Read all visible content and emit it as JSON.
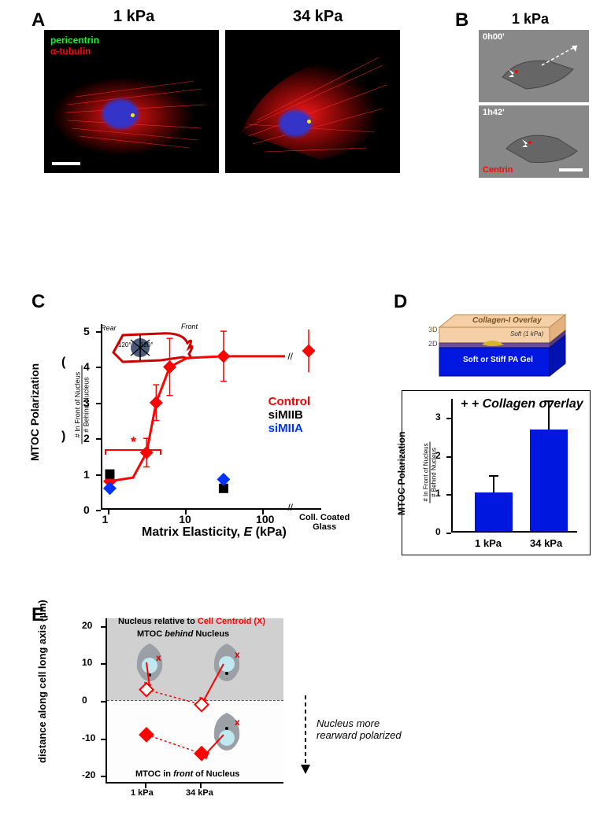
{
  "panelA": {
    "label": "A",
    "img1_title": "1 kPa",
    "img2_title": "34 kPa",
    "legend_pericentrin": "pericentrin",
    "legend_tubulin": "α-tubulin",
    "colors": {
      "pericentrin": "#00ff1a",
      "tubulin": "#ff0505",
      "nucleus": "#2e2ee6",
      "bg": "#000000",
      "dot": "#f8e71c"
    }
  },
  "panelB": {
    "label": "B",
    "title": "1 kPa",
    "time0": "0h00'",
    "time1": "1h42'",
    "centrin": "Centrin",
    "centrin_color": "#ff0505",
    "bg": "#777777"
  },
  "panelC": {
    "label": "C",
    "ylabel_top": "MTOC Polarization",
    "ylabel_frac_top": "# In Front of Nucleus",
    "ylabel_frac_bot": "# Behind Nucleus",
    "xlabel": "Matrix Elasticity, ",
    "xlabel_var": "E",
    "xlabel_unit": " (kPa)",
    "coll_glass1": "Coll. Coated",
    "coll_glass2": "Glass",
    "legend": {
      "control": "Control",
      "siMIIB": "siMIIB",
      "siMIIA": "siMIIA"
    },
    "legend_colors": {
      "control": "#ff0000",
      "siMIIB": "#000000",
      "siMIIA": "#0033ff"
    },
    "xticks": [
      "1",
      "10",
      "100"
    ],
    "yticks": [
      "0",
      "1",
      "2",
      "3",
      "4",
      "5"
    ],
    "control_curve": [
      {
        "x": 1,
        "y": 0.8
      },
      {
        "x": 2,
        "y": 0.9
      },
      {
        "x": 3,
        "y": 1.6
      },
      {
        "x": 4,
        "y": 3.0
      },
      {
        "x": 6,
        "y": 4.0
      },
      {
        "x": 10,
        "y": 4.25
      },
      {
        "x": 30,
        "y": 4.3
      }
    ],
    "control_points": [
      {
        "x": 1,
        "y": 0.8,
        "err": 0.2
      },
      {
        "x": 3,
        "y": 1.6,
        "err": 0.4
      },
      {
        "x": 4,
        "y": 3.0,
        "err": 0.5
      },
      {
        "x": 6,
        "y": 4.0,
        "err": 0.8
      },
      {
        "x": 30,
        "y": 4.3,
        "err": 0.7
      }
    ],
    "glass_point": {
      "y": 4.45,
      "err": 0.6
    },
    "siMIIB_points": [
      {
        "x": 1,
        "y": 1.0
      },
      {
        "x": 30,
        "y": 0.6
      }
    ],
    "siMIIA_points": [
      {
        "x": 1,
        "y": 0.6
      },
      {
        "x": 30,
        "y": 0.85
      }
    ],
    "star": "*",
    "inset": {
      "rear": "Rear",
      "front": "Front",
      "angle": "120°"
    },
    "colors": {
      "curve": "#ff0000",
      "control_fill": "#ff0000",
      "siMIIB_fill": "#000000",
      "siMIIA_fill": "#0033ff",
      "inset_outline": "#cc0000"
    },
    "ylim": [
      0,
      5.2
    ],
    "marker_size": 10
  },
  "panelD": {
    "label": "D",
    "overlay_text": "Collagen-I Overlay",
    "soft_text": "Soft (1 kPa)",
    "gelbase_text": "Soft or Stiff PA Gel",
    "layer3d": "3D",
    "layer2d": "2D",
    "title": "+ Collagen overlay",
    "ylabel_top": "MTOC Polarization",
    "ylabel_frac_top": "# In Front of Nucleus",
    "ylabel_frac_bot": "# Behind Nucleus",
    "xticks": [
      "1 kPa",
      "34 kPa"
    ],
    "yticks": [
      "0",
      "1",
      "2",
      "3"
    ],
    "bars": [
      {
        "label": "1 kPa",
        "value": 1.0,
        "err": 0.45
      },
      {
        "label": "34 kPa",
        "value": 2.65,
        "err": 0.75
      }
    ],
    "bar_color": "#0017e0",
    "colors": {
      "collagen": "#f5cfa6",
      "soft": "#6d4d9c",
      "gel": "#0017e0",
      "cell": "#d4b52a"
    },
    "ylim": [
      0,
      3.5
    ]
  },
  "panelE": {
    "label": "E",
    "title_pre": "Nucleus relative to ",
    "title_red": "Cell Centroid (X)",
    "behind_text": "MTOC behind Nucleus",
    "front_text": "MTOC in front of Nucleus",
    "ylabel": "distance along cell long axis (µm)",
    "yticks": [
      "-20",
      "-10",
      "0",
      "10",
      "20"
    ],
    "xticks": [
      "1 kPa",
      "34 kPa"
    ],
    "side_text1": "Nucleus more",
    "side_text2": "rearward polarized",
    "ylim": [
      -22,
      22
    ],
    "open_points": [
      {
        "x": 0,
        "y": 3,
        "err": 2
      },
      {
        "x": 1,
        "y": -1,
        "err": 2
      }
    ],
    "filled_points": [
      {
        "x": 0,
        "y": -9,
        "err": 2
      },
      {
        "x": 1,
        "y": -14,
        "err": 1.5
      }
    ],
    "marker_color": "#ff0000",
    "gray_color": "#d0d0d0",
    "x_color": "#d00000"
  }
}
